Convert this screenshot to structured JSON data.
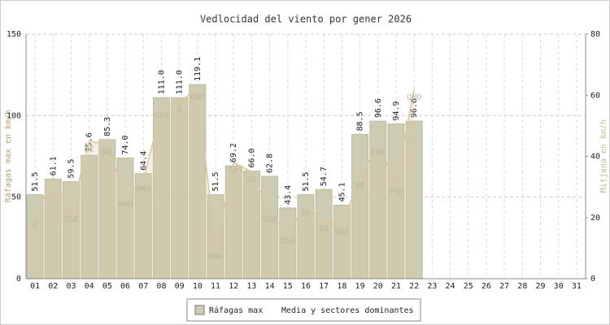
{
  "chart_data": {
    "type": "bar",
    "title": "Vedlocidad del viento por gener 2026",
    "y_label": "Ráfagas max en km/h",
    "y2_label": "Mitjana en km/h",
    "categories": [
      "01",
      "02",
      "03",
      "04",
      "05",
      "06",
      "07",
      "08",
      "09",
      "10",
      "11",
      "12",
      "13",
      "14",
      "15",
      "16",
      "17",
      "18",
      "19",
      "20",
      "21",
      "22",
      "23",
      "24",
      "25",
      "26",
      "27",
      "28",
      "29",
      "30",
      "31"
    ],
    "series": [
      {
        "name": "Ráfagas max",
        "color": "#cdcbb1",
        "values": [
          51.5,
          61.1,
          59.5,
          75.6,
          85.3,
          74.0,
          64.4,
          111.0,
          111.0,
          119.1,
          51.5,
          69.2,
          66.0,
          62.8,
          43.4,
          51.5,
          54.7,
          45.1,
          88.5,
          96.6,
          94.9,
          96.6,
          null,
          null,
          null,
          null,
          null,
          null,
          null,
          null,
          null
        ],
        "value_labels": [
          "51.5",
          "61.1",
          "59.5",
          "75.6",
          "85.3",
          "74.0",
          "64.4",
          "111.0",
          "111.0",
          "119.1",
          "51.5",
          "69.2",
          "66.0",
          "62.8",
          "43.4",
          "51.5",
          "54.7",
          "45.1",
          "88.5",
          "96.6",
          "94.9",
          "96.6",
          null,
          null,
          null,
          null,
          null,
          null,
          null,
          null,
          null
        ]
      },
      {
        "name": "Media y sectores dominantes",
        "color": "#d9c8a6",
        "axis": "y2",
        "values": [
          20,
          33,
          22,
          45,
          44,
          27,
          32,
          56,
          58,
          62,
          10,
          38,
          35,
          22,
          15,
          24,
          19,
          18,
          33,
          44,
          31,
          62,
          null,
          null,
          null,
          null,
          null,
          null,
          null,
          null,
          null
        ],
        "sectors": [
          "O",
          null,
          "SSE",
          "NE",
          "NE",
          "NNO",
          "ONO",
          "SSO",
          "O",
          "ONO",
          "ONO",
          "SO",
          "SO",
          "SSO",
          "SSO",
          "SO",
          "SO",
          "SSE",
          "NE",
          "ENE",
          "ESE",
          "ONO",
          null,
          null,
          null,
          null,
          null,
          null,
          null,
          null,
          null
        ]
      }
    ],
    "ylim": [
      0,
      150
    ],
    "yticks": [
      0,
      50,
      100,
      150
    ],
    "y2lim": [
      0,
      80
    ],
    "y2ticks": [
      0,
      20,
      40,
      60,
      80
    ],
    "grid": true,
    "legend": "bottom"
  }
}
